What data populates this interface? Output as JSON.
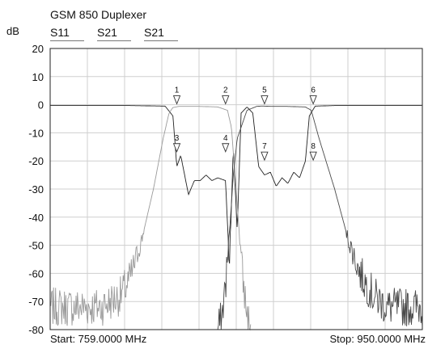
{
  "chart_data": {
    "type": "line",
    "title": "GSM 850 Duplexer",
    "ylabel": "dB",
    "ylim": [
      -80,
      20
    ],
    "yticks": [
      20,
      10,
      0,
      -10,
      -20,
      -30,
      -40,
      -50,
      -60,
      -70,
      -80
    ],
    "xlim": [
      759,
      950
    ],
    "x_unit": "MHz",
    "grid": true,
    "legend": [
      "S11",
      "S21",
      "S21"
    ],
    "start_label": "Start: 759.0000 MHz",
    "stop_label": "Stop: 950.0000 MHz",
    "series": [
      {
        "name": "S11",
        "color": "#222222",
        "x": [
          759,
          800,
          818,
          822,
          824,
          826,
          828,
          830,
          833,
          836,
          839,
          842,
          845,
          849,
          851,
          853,
          855,
          857,
          860,
          863,
          866,
          869,
          872,
          875,
          878,
          881,
          884,
          887,
          890,
          892,
          895,
          905,
          950
        ],
        "y": [
          -0.3,
          -0.3,
          -0.5,
          -4,
          -22,
          -18,
          -25,
          -32,
          -27,
          -27,
          -25,
          -27,
          -26,
          -27,
          -58,
          -15,
          -45,
          -3,
          -0.8,
          -3,
          -22,
          -25,
          -24,
          -29,
          -26,
          -28,
          -24,
          -26,
          -20,
          -4,
          -0.5,
          -0.3,
          -0.3
        ]
      },
      {
        "name": "S21",
        "color": "#9a9a9a",
        "x": [
          759,
          785,
          795,
          800,
          806,
          812,
          817,
          820,
          822,
          825,
          835,
          845,
          850,
          852,
          854,
          856,
          858,
          860,
          862
        ],
        "y": [
          -72,
          -72,
          -68,
          -62,
          -48,
          -30,
          -12,
          -3,
          -1,
          -0.6,
          -0.6,
          -0.8,
          -2,
          -8,
          -26,
          -45,
          -63,
          -74,
          -80
        ]
      },
      {
        "name": "S21",
        "color": "#4a4a4a",
        "x": [
          845,
          847,
          849,
          851,
          853,
          855,
          860,
          865,
          867,
          869,
          872,
          880,
          890,
          893,
          897,
          905,
          912,
          918,
          925,
          932,
          940,
          950
        ],
        "y": [
          -80,
          -76,
          -64,
          -46,
          -25,
          -12,
          -2,
          -0.6,
          -0.5,
          -0.5,
          -0.6,
          -0.6,
          -0.8,
          -2,
          -12,
          -30,
          -48,
          -60,
          -68,
          -72,
          -72,
          -72
        ]
      }
    ],
    "markers": [
      {
        "label": "1",
        "x": 824,
        "y": 0
      },
      {
        "label": "2",
        "x": 849,
        "y": 0
      },
      {
        "label": "5",
        "x": 869,
        "y": 0
      },
      {
        "label": "6",
        "x": 894,
        "y": 0
      },
      {
        "label": "3",
        "x": 824,
        "y": -17
      },
      {
        "label": "4",
        "x": 849,
        "y": -17
      },
      {
        "label": "7",
        "x": 869,
        "y": -20
      },
      {
        "label": "8",
        "x": 894,
        "y": -20
      }
    ]
  }
}
